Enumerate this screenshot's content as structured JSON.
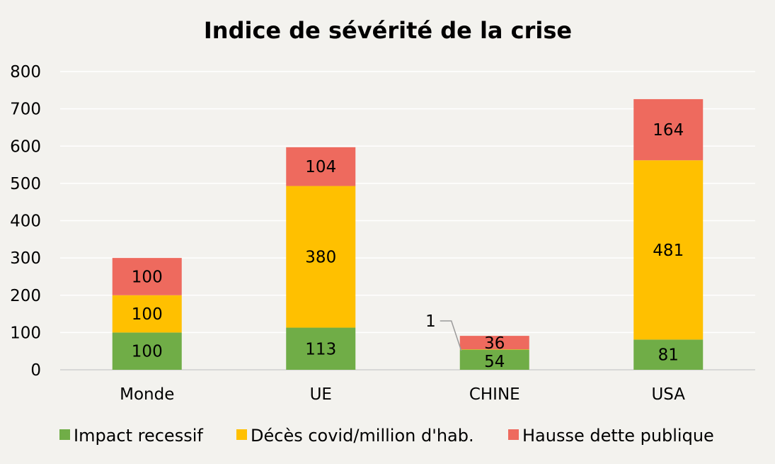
{
  "chart_data": {
    "type": "bar",
    "stacked": true,
    "title": "Indice de sévérité de la crise",
    "xlabel": "",
    "ylabel": "",
    "ylim": [
      0,
      800
    ],
    "yticks": [
      0,
      100,
      200,
      300,
      400,
      500,
      600,
      700,
      800
    ],
    "grid": true,
    "legend_position": "bottom",
    "categories": [
      "Monde",
      "UE",
      "CHINE",
      "USA"
    ],
    "series": [
      {
        "name": "Impact recessif",
        "color": "#70ad47",
        "values": [
          100,
          113,
          54,
          81
        ]
      },
      {
        "name": "Décès covid/million d'hab.",
        "color": "#ffc000",
        "values": [
          100,
          380,
          1,
          481
        ]
      },
      {
        "name": "Hausse dette publique",
        "color": "#ee6a5e",
        "values": [
          100,
          104,
          36,
          164
        ]
      }
    ],
    "data_labels": [
      [
        "100",
        "113",
        "54",
        "81"
      ],
      [
        "100",
        "380",
        "1",
        "481"
      ],
      [
        "100",
        "104",
        "36",
        "164"
      ]
    ]
  }
}
